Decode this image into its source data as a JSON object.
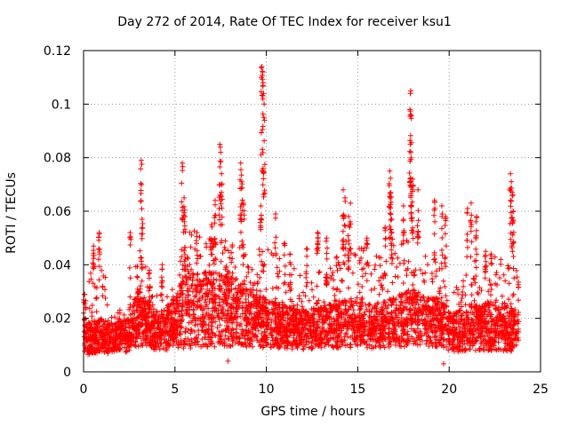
{
  "chart_data": {
    "type": "scatter",
    "title": "Day 272 of 2014, Rate Of TEC Index for receiver ksu1",
    "xlabel": "GPS time / hours",
    "ylabel": "ROTI / TECUs",
    "xlim": [
      0,
      25
    ],
    "ylim": [
      0,
      0.12
    ],
    "xticks": [
      0,
      5,
      10,
      15,
      20,
      25
    ],
    "xtick_labels": [
      "0",
      "5",
      "10",
      "15",
      "20",
      "25"
    ],
    "yticks": [
      0,
      0.02,
      0.04,
      0.06,
      0.08,
      0.1,
      0.12
    ],
    "ytick_labels": [
      "0",
      "0.02",
      "0.04",
      "0.06",
      "0.08",
      "0.1",
      "0.12"
    ],
    "grid": true,
    "marker": "plus",
    "color": "#ff0000",
    "series": [
      {
        "name": "ROTI",
        "baseline_profile": [
          {
            "x": 0.0,
            "low": 0.004,
            "typ": 0.011,
            "high": 0.03
          },
          {
            "x": 1.0,
            "low": 0.005,
            "typ": 0.012,
            "high": 0.052
          },
          {
            "x": 1.5,
            "low": 0.005,
            "typ": 0.011,
            "high": 0.02
          },
          {
            "x": 2.5,
            "low": 0.005,
            "typ": 0.012,
            "high": 0.03
          },
          {
            "x": 3.0,
            "low": 0.006,
            "typ": 0.018,
            "high": 0.048
          },
          {
            "x": 4.0,
            "low": 0.006,
            "typ": 0.013,
            "high": 0.03
          },
          {
            "x": 5.0,
            "low": 0.005,
            "typ": 0.016,
            "high": 0.035
          },
          {
            "x": 5.5,
            "low": 0.004,
            "typ": 0.02,
            "high": 0.055
          },
          {
            "x": 7.0,
            "low": 0.004,
            "typ": 0.02,
            "high": 0.05
          },
          {
            "x": 8.0,
            "low": 0.005,
            "typ": 0.02,
            "high": 0.05
          },
          {
            "x": 9.0,
            "low": 0.005,
            "typ": 0.018,
            "high": 0.045
          },
          {
            "x": 10.0,
            "low": 0.006,
            "typ": 0.016,
            "high": 0.05
          },
          {
            "x": 12.0,
            "low": 0.006,
            "typ": 0.014,
            "high": 0.035
          },
          {
            "x": 14.5,
            "low": 0.006,
            "typ": 0.016,
            "high": 0.05
          },
          {
            "x": 16.0,
            "low": 0.006,
            "typ": 0.015,
            "high": 0.045
          },
          {
            "x": 18.0,
            "low": 0.006,
            "typ": 0.018,
            "high": 0.05
          },
          {
            "x": 19.5,
            "low": 0.006,
            "typ": 0.016,
            "high": 0.04
          },
          {
            "x": 20.3,
            "low": 0.005,
            "typ": 0.013,
            "high": 0.03
          },
          {
            "x": 20.8,
            "low": 0.005,
            "typ": 0.014,
            "high": 0.04
          },
          {
            "x": 22.0,
            "low": 0.005,
            "typ": 0.015,
            "high": 0.045
          },
          {
            "x": 23.5,
            "low": 0.005,
            "typ": 0.014,
            "high": 0.04
          }
        ],
        "peaks": [
          {
            "x": 0.05,
            "y": 0.029
          },
          {
            "x": 0.55,
            "y": 0.047
          },
          {
            "x": 0.85,
            "y": 0.052
          },
          {
            "x": 2.55,
            "y": 0.052
          },
          {
            "x": 3.15,
            "y": 0.079
          },
          {
            "x": 3.2,
            "y": 0.057
          },
          {
            "x": 3.6,
            "y": 0.038
          },
          {
            "x": 4.3,
            "y": 0.04
          },
          {
            "x": 5.4,
            "y": 0.078
          },
          {
            "x": 5.5,
            "y": 0.065
          },
          {
            "x": 5.55,
            "y": 0.058
          },
          {
            "x": 6.2,
            "y": 0.052
          },
          {
            "x": 7.0,
            "y": 0.055
          },
          {
            "x": 7.2,
            "y": 0.064
          },
          {
            "x": 7.45,
            "y": 0.085
          },
          {
            "x": 7.5,
            "y": 0.082
          },
          {
            "x": 7.55,
            "y": 0.074
          },
          {
            "x": 8.6,
            "y": 0.078
          },
          {
            "x": 8.65,
            "y": 0.071
          },
          {
            "x": 8.75,
            "y": 0.063
          },
          {
            "x": 9.75,
            "y": 0.114
          },
          {
            "x": 9.8,
            "y": 0.112
          },
          {
            "x": 9.82,
            "y": 0.108
          },
          {
            "x": 9.85,
            "y": 0.104
          },
          {
            "x": 9.88,
            "y": 0.1
          },
          {
            "x": 9.7,
            "y": 0.062
          },
          {
            "x": 10.5,
            "y": 0.059
          },
          {
            "x": 11.0,
            "y": 0.048
          },
          {
            "x": 11.3,
            "y": 0.044
          },
          {
            "x": 12.2,
            "y": 0.046
          },
          {
            "x": 12.8,
            "y": 0.052
          },
          {
            "x": 13.3,
            "y": 0.05
          },
          {
            "x": 14.2,
            "y": 0.068
          },
          {
            "x": 14.3,
            "y": 0.065
          },
          {
            "x": 14.6,
            "y": 0.063
          },
          {
            "x": 14.5,
            "y": 0.058
          },
          {
            "x": 15.5,
            "y": 0.05
          },
          {
            "x": 16.5,
            "y": 0.054
          },
          {
            "x": 16.75,
            "y": 0.075
          },
          {
            "x": 16.8,
            "y": 0.067
          },
          {
            "x": 16.85,
            "y": 0.057
          },
          {
            "x": 17.5,
            "y": 0.062
          },
          {
            "x": 17.9,
            "y": 0.105
          },
          {
            "x": 17.85,
            "y": 0.098
          },
          {
            "x": 17.88,
            "y": 0.085
          },
          {
            "x": 17.92,
            "y": 0.08
          },
          {
            "x": 18.0,
            "y": 0.072
          },
          {
            "x": 18.3,
            "y": 0.068
          },
          {
            "x": 19.2,
            "y": 0.064
          },
          {
            "x": 19.6,
            "y": 0.062
          },
          {
            "x": 19.8,
            "y": 0.058
          },
          {
            "x": 21.0,
            "y": 0.061
          },
          {
            "x": 21.2,
            "y": 0.063
          },
          {
            "x": 21.5,
            "y": 0.058
          },
          {
            "x": 22.0,
            "y": 0.045
          },
          {
            "x": 22.3,
            "y": 0.044
          },
          {
            "x": 23.35,
            "y": 0.074
          },
          {
            "x": 23.4,
            "y": 0.071
          },
          {
            "x": 23.45,
            "y": 0.067
          },
          {
            "x": 23.5,
            "y": 0.06
          }
        ],
        "gaps": [
          {
            "x": 19.7,
            "y": 0.003
          },
          {
            "x": 7.9,
            "y": 0.004
          }
        ]
      }
    ]
  }
}
